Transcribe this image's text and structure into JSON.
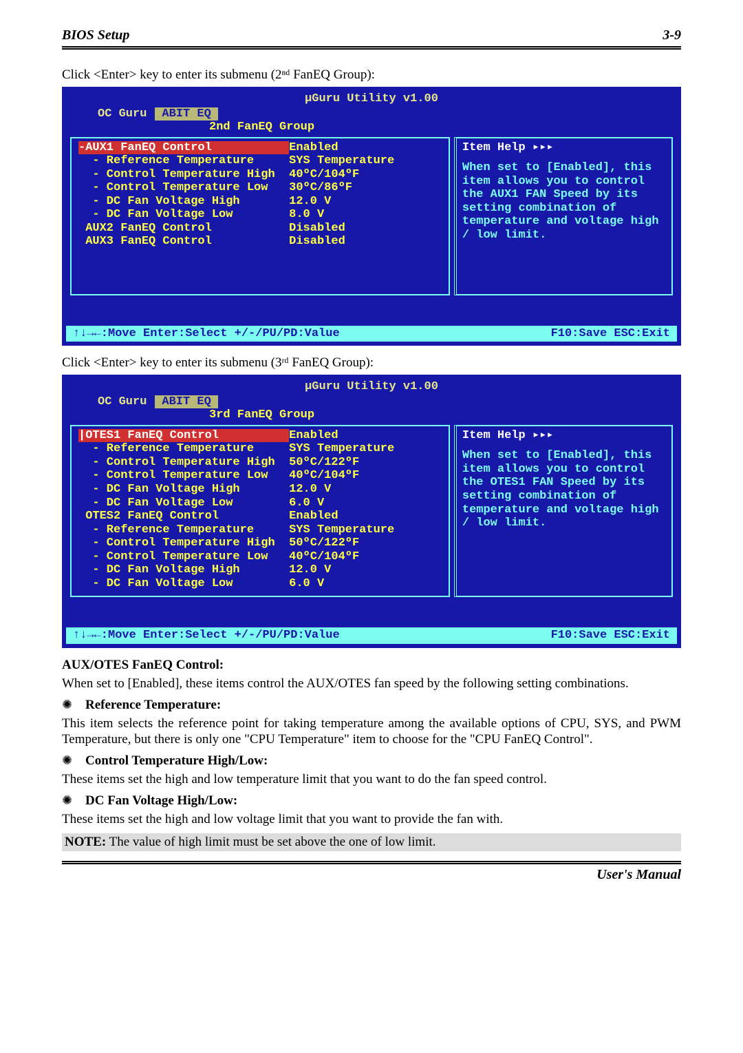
{
  "header": {
    "title": "BIOS Setup",
    "page": "3-9"
  },
  "intro1": "Click <Enter> key to enter its submenu (2ⁿᵈ FanEQ Group):",
  "intro2": "Click <Enter> key to enter its submenu (3ʳᵈ FanEQ Group):",
  "bios": {
    "utility_title": "µGuru Utility v1.00",
    "tabs": {
      "left": "OC Guru",
      "active": "ABIT EQ"
    },
    "footer_left": "↑↓→←:Move   Enter:Select   +/-/PU/PD:Value",
    "footer_right": "F10:Save   ESC:Exit"
  },
  "box1": {
    "submenu": "2nd FanEQ Group",
    "rows": [
      {
        "sel": true,
        "label": "-AUX1 FanEQ Control",
        "val": "Enabled"
      },
      {
        "sel": false,
        "label": "  - Reference Temperature",
        "val": "SYS Temperature"
      },
      {
        "sel": false,
        "label": "  - Control Temperature High",
        "val": "40ºC/104ºF"
      },
      {
        "sel": false,
        "label": "  - Control Temperature Low",
        "val": "30ºC/86ºF"
      },
      {
        "sel": false,
        "label": "  - DC Fan Voltage High",
        "val": "12.0 V"
      },
      {
        "sel": false,
        "label": "  - DC Fan Voltage Low",
        "val": "8.0 V"
      },
      {
        "sel": false,
        "label": " AUX2 FanEQ Control",
        "val": "Disabled"
      },
      {
        "sel": false,
        "label": " AUX3 FanEQ Control",
        "val": "Disabled"
      }
    ],
    "help_title": "Item Help ▸▸▸",
    "help_body": "When set to [Enabled], this item allows you to control the AUX1 FAN Speed by its setting combination of temperature and voltage high / low limit."
  },
  "box2": {
    "submenu": "3rd FanEQ Group",
    "rows": [
      {
        "sel": true,
        "label": "|OTES1 FanEQ Control",
        "val": "Enabled"
      },
      {
        "sel": false,
        "label": "  - Reference Temperature",
        "val": "SYS Temperature"
      },
      {
        "sel": false,
        "label": "  - Control Temperature High",
        "val": "50ºC/122ºF"
      },
      {
        "sel": false,
        "label": "  - Control Temperature Low",
        "val": "40ºC/104ºF"
      },
      {
        "sel": false,
        "label": "  - DC Fan Voltage High",
        "val": "12.0 V"
      },
      {
        "sel": false,
        "label": "  - DC Fan Voltage Low",
        "val": "6.0 V"
      },
      {
        "sel": false,
        "label": " OTES2 FanEQ Control",
        "val": "Enabled"
      },
      {
        "sel": false,
        "label": "  - Reference Temperature",
        "val": "SYS Temperature"
      },
      {
        "sel": false,
        "label": "  - Control Temperature High",
        "val": "50ºC/122ºF"
      },
      {
        "sel": false,
        "label": "  - Control Temperature Low",
        "val": "40ºC/104ºF"
      },
      {
        "sel": false,
        "label": "  - DC Fan Voltage High",
        "val": "12.0 V"
      },
      {
        "sel": false,
        "label": "  - DC Fan Voltage Low",
        "val": "6.0 V"
      }
    ],
    "help_title": "Item Help ▸▸▸",
    "help_body": "When set to [Enabled], this item allows you to control the OTES1 FAN Speed by its setting combination of temperature and voltage high / low limit."
  },
  "body": {
    "h1": "AUX/OTES FanEQ Control:",
    "p1": "When set to [Enabled], these items control the AUX/OTES fan speed by the following setting combinations.",
    "b1": "Reference Temperature:",
    "p2": "This item selects the reference point for taking temperature among the available options of CPU, SYS, and PWM Temperature, but there is only one \"CPU Temperature\" item to choose for the \"CPU FanEQ Control\".",
    "b2": "Control Temperature High/Low:",
    "p3": "These items set the high and low temperature limit that you want to do the fan speed control.",
    "b3": "DC Fan Voltage High/Low:",
    "p4": "These items set the high and low voltage limit that you want to provide the fan with.",
    "note_label": "NOTE:",
    "note_text": " The value of high limit must be set above the one of low limit."
  },
  "footer": {
    "manual": "User's Manual"
  },
  "colors": {
    "bios_bg": "#1818a8",
    "bios_accent": "#7cfcf0",
    "bios_yellow": "#ffff44",
    "bios_highlight": "#d03030",
    "tab_active_bg": "#b8b878",
    "note_bg": "#dcdcdc"
  }
}
